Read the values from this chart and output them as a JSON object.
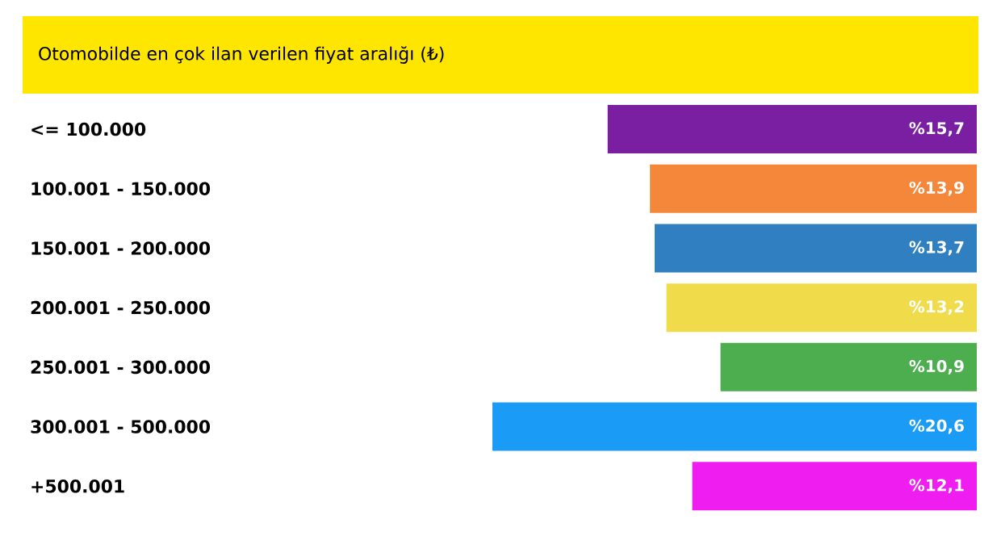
{
  "chart_data": {
    "type": "bar",
    "orientation": "horizontal",
    "title": "Otomobilde en çok ilan verilen fiyat aralığı (₺)",
    "categories": [
      "<= 100.000",
      "100.001 - 150.000",
      "150.001 - 200.000",
      "200.001 - 250.000",
      "250.001 - 300.000",
      "300.001 - 500.000",
      "+500.001"
    ],
    "values": [
      15.7,
      13.9,
      13.7,
      13.2,
      10.9,
      20.6,
      12.1
    ],
    "value_labels": [
      "%15,7",
      "%13,9",
      "%13,7",
      "%13,2",
      "%10,9",
      "%20,6",
      "%12,1"
    ],
    "colors": [
      "#7b1fa2",
      "#f5873a",
      "#2f7fc1",
      "#f0dc4a",
      "#4cae4f",
      "#1a9bf6",
      "#f01df0"
    ]
  }
}
